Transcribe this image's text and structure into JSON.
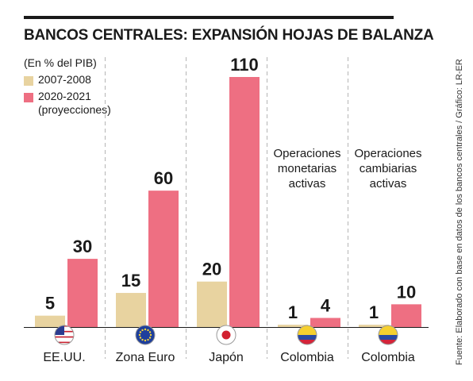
{
  "chart_data": {
    "type": "bar",
    "title": "BANCOS CENTRALES: EXPANSIÓN HOJAS DE BALANZA",
    "unit_note": "(En % del PIB)",
    "categories": [
      "EE.UU.",
      "Zona Euro",
      "Japón",
      "Colombia",
      "Colombia"
    ],
    "series": [
      {
        "name": "2007-2008",
        "color": "#e8d3a0",
        "values": [
          5,
          15,
          20,
          1,
          1
        ]
      },
      {
        "name": "2020-2021",
        "name_line2": "(proyecciones)",
        "color": "#ee6f82",
        "values": [
          30,
          60,
          110,
          4,
          10
        ]
      }
    ],
    "ylim": [
      0,
      110
    ],
    "group_annotations": [
      "",
      "",
      "",
      "Operaciones monetarias activas",
      "Operaciones cambiarias activas"
    ],
    "flags": [
      "us-flag",
      "eu-flag",
      "japan-flag",
      "colombia-flag",
      "colombia-flag"
    ],
    "legend_position": "top-left",
    "grid": false
  },
  "source": "Fuente: Elaborado con base en datos de los bancos centrales / Gráfico: LR-ER"
}
